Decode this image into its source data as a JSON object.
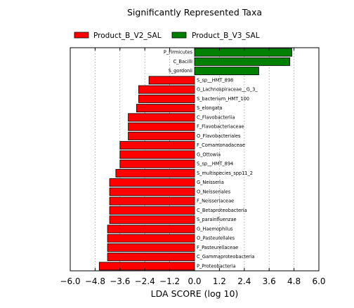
{
  "chart_data": {
    "type": "bar",
    "orientation": "horizontal",
    "title": "Significantly Represented Taxa",
    "xlabel": "LDA SCORE (log 10)",
    "ylabel": "",
    "xlim": [
      -6.0,
      6.0
    ],
    "xticks": [
      -6.0,
      -4.8,
      -3.6,
      -2.4,
      -1.2,
      0.0,
      1.2,
      2.4,
      3.6,
      4.8,
      6.0
    ],
    "xtick_labels": [
      "−6.0",
      "−4.8",
      "−3.6",
      "−2.4",
      "−1.2",
      "0.0",
      "1.2",
      "2.4",
      "3.6",
      "4.8",
      "6.0"
    ],
    "grid": "vertical dotted at x ticks",
    "legend_position": "top",
    "legend": [
      {
        "name": "Product_B_V2_SAL",
        "color": "#ff0000"
      },
      {
        "name": "Product_B_V3_SAL",
        "color": "#008000"
      }
    ],
    "bars": [
      {
        "label": "P_Firmicutes",
        "value": 4.7,
        "group": "Product_B_V3_SAL",
        "color": "#008000"
      },
      {
        "label": "C_Bacilli",
        "value": 4.6,
        "group": "Product_B_V3_SAL",
        "color": "#008000"
      },
      {
        "label": "S_gordonii",
        "value": 3.1,
        "group": "Product_B_V3_SAL",
        "color": "#008000"
      },
      {
        "label": "S_sp__HMT_898",
        "value": -2.2,
        "group": "Product_B_V2_SAL",
        "color": "#ff0000"
      },
      {
        "label": "G_Lachnospiraceae__G_3_",
        "value": -2.7,
        "group": "Product_B_V2_SAL",
        "color": "#ff0000"
      },
      {
        "label": "S_bacterium_HMT_100",
        "value": -2.7,
        "group": "Product_B_V2_SAL",
        "color": "#ff0000"
      },
      {
        "label": "S_elongata",
        "value": -2.8,
        "group": "Product_B_V2_SAL",
        "color": "#ff0000"
      },
      {
        "label": "C_Flavobacteriia",
        "value": -3.2,
        "group": "Product_B_V2_SAL",
        "color": "#ff0000"
      },
      {
        "label": "F_Flavobacteriaceae",
        "value": -3.2,
        "group": "Product_B_V2_SAL",
        "color": "#ff0000"
      },
      {
        "label": "O_Flavobacteriales",
        "value": -3.2,
        "group": "Product_B_V2_SAL",
        "color": "#ff0000"
      },
      {
        "label": "F_Comamonadaceae",
        "value": -3.6,
        "group": "Product_B_V2_SAL",
        "color": "#ff0000"
      },
      {
        "label": "G_Ottowia",
        "value": -3.6,
        "group": "Product_B_V2_SAL",
        "color": "#ff0000"
      },
      {
        "label": "S_sp__HMT_894",
        "value": -3.6,
        "group": "Product_B_V2_SAL",
        "color": "#ff0000"
      },
      {
        "label": "S_multispecies_spp11_2",
        "value": -3.8,
        "group": "Product_B_V2_SAL",
        "color": "#ff0000"
      },
      {
        "label": "G_Neisseria",
        "value": -4.1,
        "group": "Product_B_V2_SAL",
        "color": "#ff0000"
      },
      {
        "label": "O_Neisseriales",
        "value": -4.1,
        "group": "Product_B_V2_SAL",
        "color": "#ff0000"
      },
      {
        "label": "F_Neisseriaceae",
        "value": -4.1,
        "group": "Product_B_V2_SAL",
        "color": "#ff0000"
      },
      {
        "label": "C_Betaproteobacteria",
        "value": -4.1,
        "group": "Product_B_V2_SAL",
        "color": "#ff0000"
      },
      {
        "label": "S_parainfluenzae",
        "value": -4.1,
        "group": "Product_B_V2_SAL",
        "color": "#ff0000"
      },
      {
        "label": "G_Haemophilus",
        "value": -4.2,
        "group": "Product_B_V2_SAL",
        "color": "#ff0000"
      },
      {
        "label": "O_Pasteurellales",
        "value": -4.2,
        "group": "Product_B_V2_SAL",
        "color": "#ff0000"
      },
      {
        "label": "F_Pasteurellaceae",
        "value": -4.2,
        "group": "Product_B_V2_SAL",
        "color": "#ff0000"
      },
      {
        "label": "C_Gammaproteobacteria",
        "value": -4.2,
        "group": "Product_B_V2_SAL",
        "color": "#ff0000"
      },
      {
        "label": "P_Proteobacteria",
        "value": -4.6,
        "group": "Product_B_V2_SAL",
        "color": "#ff0000"
      }
    ]
  }
}
